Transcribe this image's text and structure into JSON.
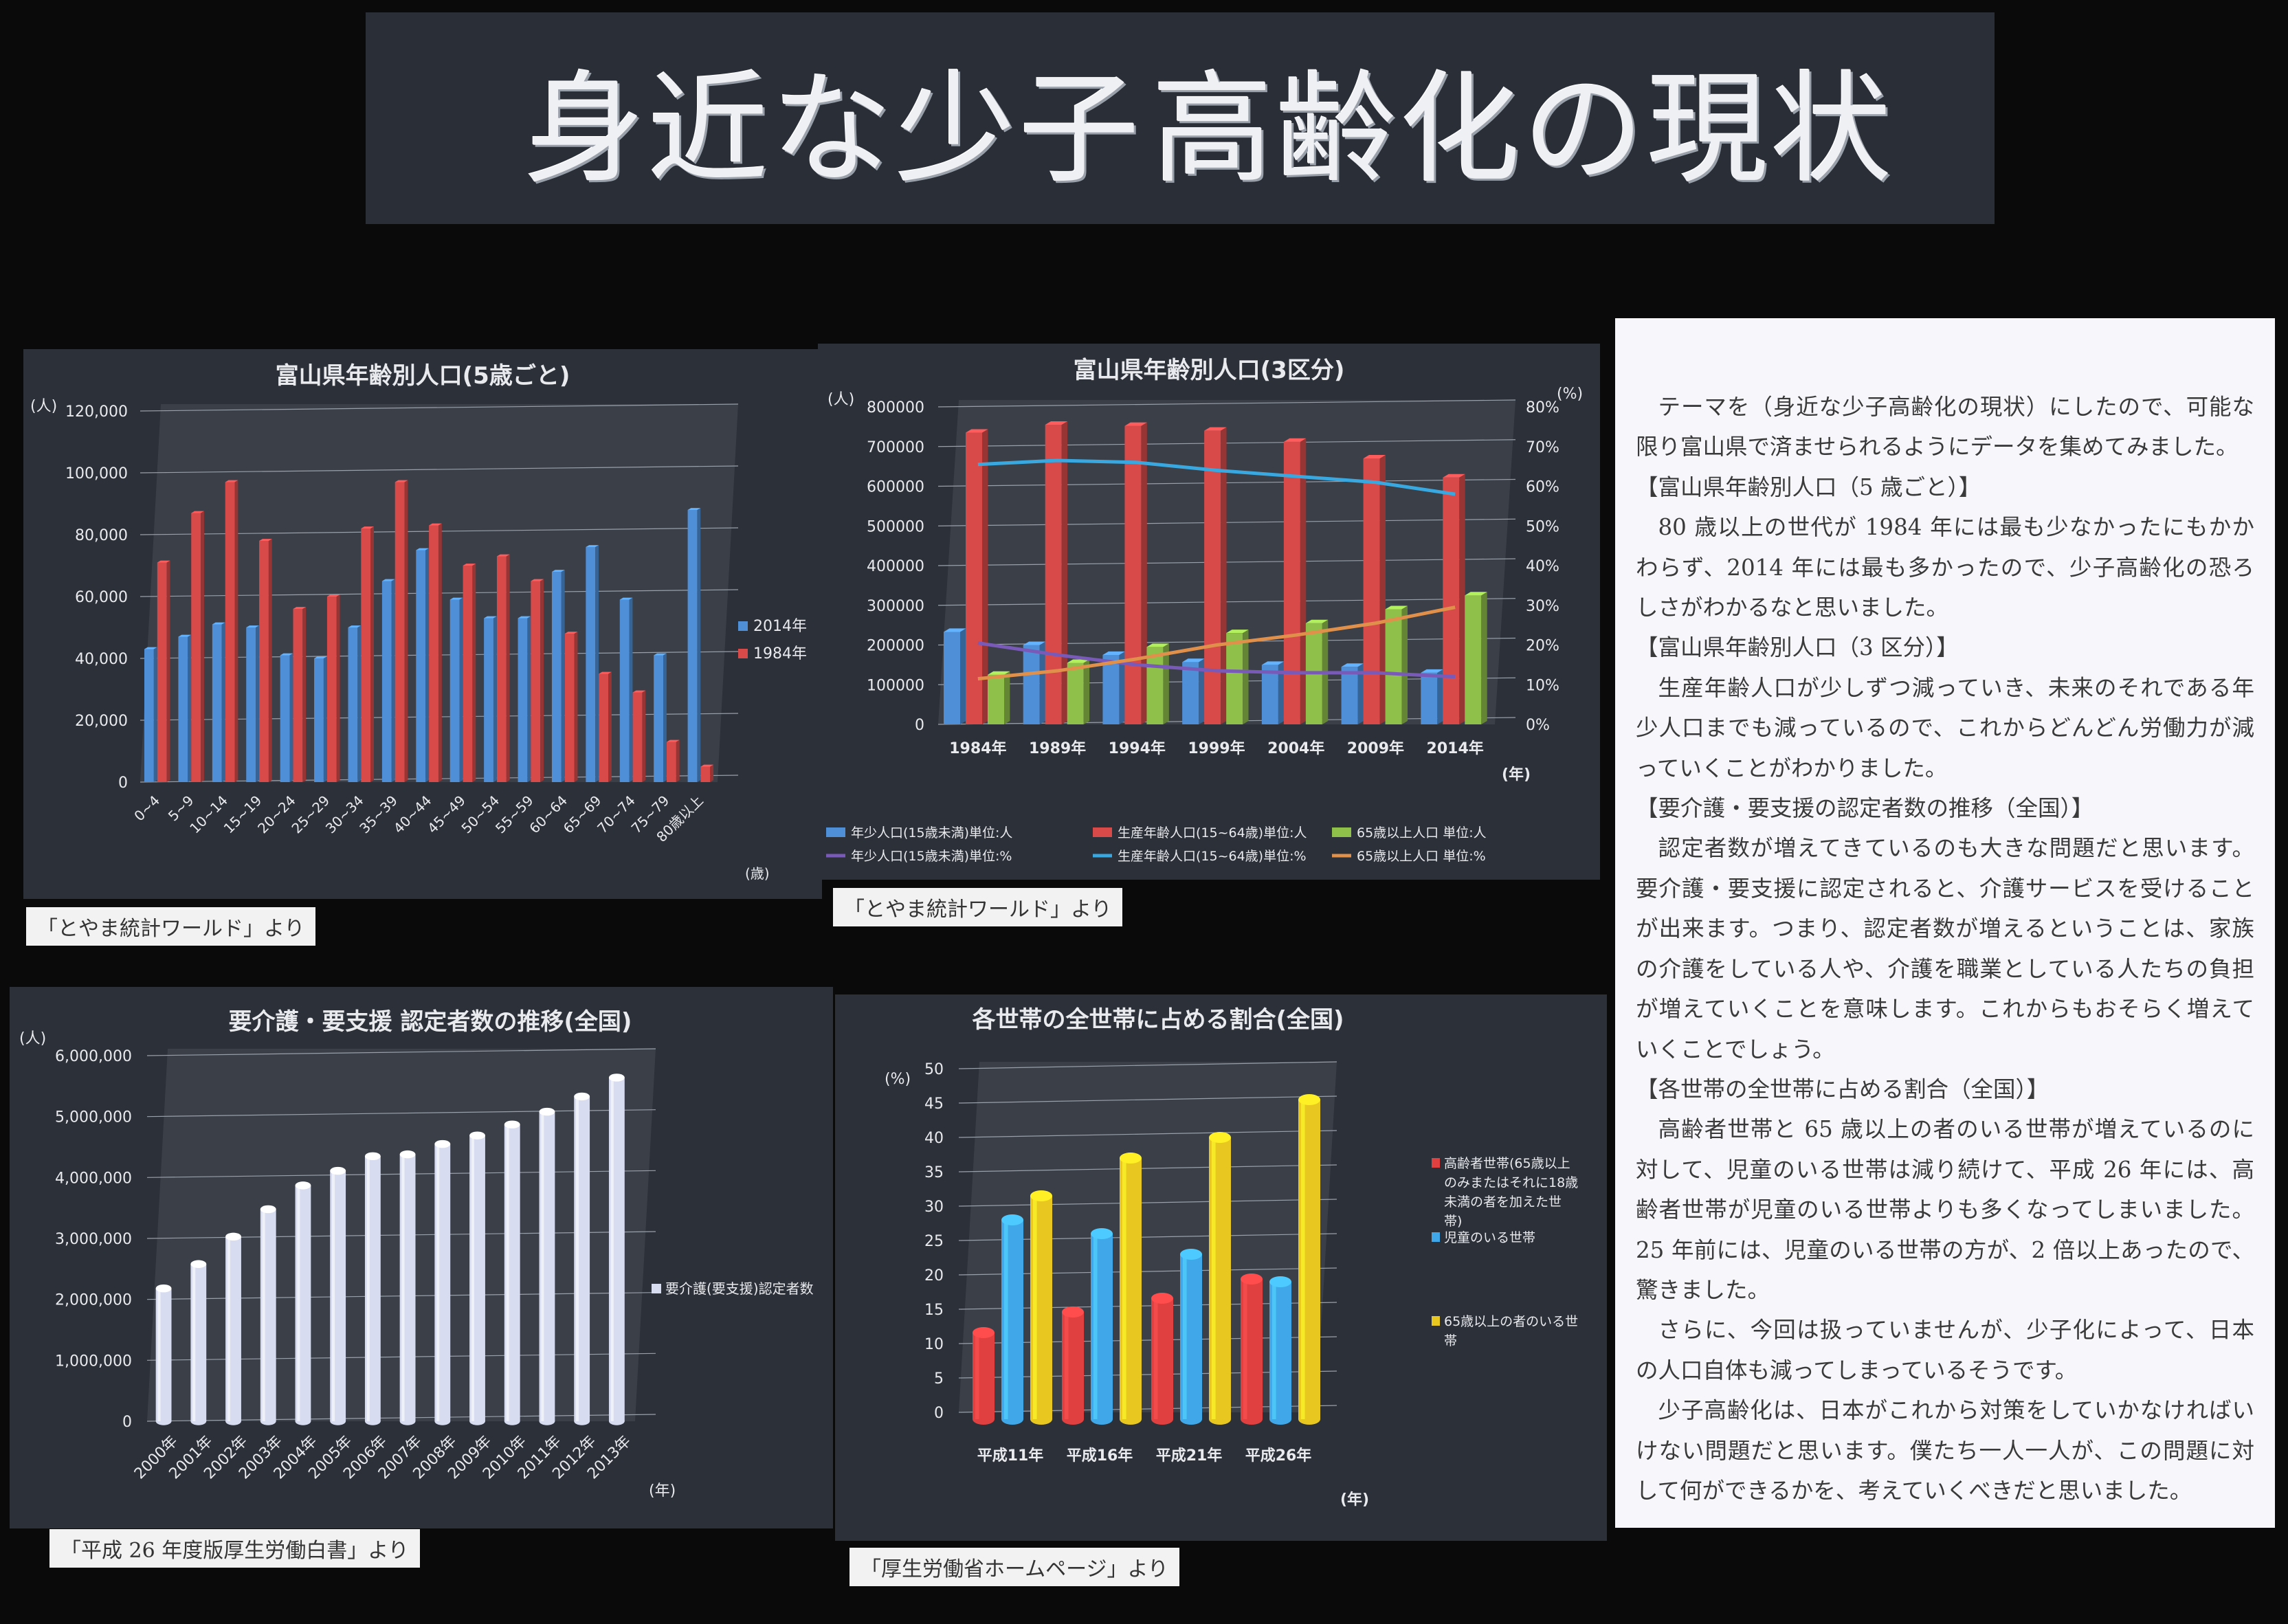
{
  "title": {
    "part1": "身近な少子",
    "part2": "高齢化の現状"
  },
  "chart_data": [
    {
      "id": "chart1",
      "type": "bar",
      "title": "富山県年齢別人口(5歳ごと)",
      "y_unit": "(人)",
      "x_unit": "(歳)",
      "ylim": [
        0,
        120000
      ],
      "yticks": [
        "0",
        "20,000",
        "40,000",
        "60,000",
        "80,000",
        "100,000",
        "120,000"
      ],
      "categories": [
        "0~4",
        "5~9",
        "10~14",
        "15~19",
        "20~24",
        "25~29",
        "30~34",
        "35~39",
        "40~44",
        "45~49",
        "50~54",
        "55~59",
        "60~64",
        "65~69",
        "70~74",
        "75~79",
        "80歳以上"
      ],
      "series": [
        {
          "name": "2014年",
          "color": "#4f8fd8",
          "values": [
            43000,
            47000,
            51000,
            50000,
            41000,
            40000,
            50000,
            65000,
            75000,
            59000,
            53000,
            53000,
            68000,
            76000,
            59000,
            41000,
            88000
          ]
        },
        {
          "name": "1984年",
          "color": "#d84a4a",
          "values": [
            71000,
            87000,
            97000,
            78000,
            56000,
            60000,
            82000,
            97000,
            83000,
            70000,
            73000,
            65000,
            48000,
            35000,
            29000,
            13000,
            5000
          ]
        }
      ]
    },
    {
      "id": "chart2",
      "type": "bar",
      "title": "富山県年齢別人口(3区分)",
      "y_unit": "(人)",
      "y2_unit": "(%)",
      "x_unit": "(年)",
      "ylim": [
        0,
        800000
      ],
      "y2lim": [
        0,
        80
      ],
      "yticks": [
        "0",
        "100000",
        "200000",
        "300000",
        "400000",
        "500000",
        "600000",
        "700000",
        "800000"
      ],
      "y2ticks": [
        "0%",
        "10%",
        "20%",
        "30%",
        "40%",
        "50%",
        "60%",
        "70%",
        "80%"
      ],
      "categories": [
        "1984年",
        "1989年",
        "1994年",
        "1999年",
        "2004年",
        "2009年",
        "2014年"
      ],
      "series": [
        {
          "name": "年少人口(15歳未満)単位:人",
          "color": "#4f8fd8",
          "values": [
            233000,
            200000,
            175000,
            157000,
            150000,
            145000,
            130000
          ]
        },
        {
          "name": "生産年齢人口(15~64歳)単位:人",
          "color": "#d84a4a",
          "values": [
            735000,
            755000,
            752000,
            740000,
            712000,
            670000,
            622000
          ]
        },
        {
          "name": "65歳以上人口 単位:人",
          "color": "#8fc04a",
          "values": [
            125000,
            155000,
            195000,
            230000,
            255000,
            290000,
            325000
          ]
        }
      ],
      "line_series": [
        {
          "name": "年少人口(15歳未満)単位:%",
          "color": "#7a5ab8",
          "values": [
            20.5,
            17.5,
            15.0,
            13.5,
            13.0,
            13.0,
            12.0
          ]
        },
        {
          "name": "生産年齢人口(15~64歳)単位:%",
          "color": "#3aa8e0",
          "values": [
            65.5,
            66.5,
            66.0,
            64.0,
            62.5,
            61.0,
            58.0
          ]
        },
        {
          "name": "65歳以上人口 単位:%",
          "color": "#e0904a",
          "values": [
            11.5,
            13.5,
            16.5,
            20.0,
            22.5,
            25.5,
            29.5
          ]
        }
      ]
    },
    {
      "id": "chart3",
      "type": "bar",
      "title": "要介護・要支援 認定者数の推移(全国)",
      "y_unit": "(人)",
      "x_unit": "(年)",
      "ylim": [
        0,
        6000000
      ],
      "yticks": [
        "0",
        "1,000,000",
        "2,000,000",
        "3,000,000",
        "4,000,000",
        "5,000,000",
        "6,000,000"
      ],
      "categories": [
        "2000年",
        "2001年",
        "2002年",
        "2003年",
        "2004年",
        "2005年",
        "2006年",
        "2007年",
        "2008年",
        "2009年",
        "2010年",
        "2011年",
        "2012年",
        "2013年"
      ],
      "series": [
        {
          "name": "要介護(要支援)認定者数",
          "color": "#d8dcf0",
          "values": [
            2180000,
            2580000,
            3030000,
            3480000,
            3870000,
            4110000,
            4350000,
            4380000,
            4550000,
            4690000,
            4870000,
            5080000,
            5330000,
            5640000
          ]
        }
      ]
    },
    {
      "id": "chart4",
      "type": "bar",
      "title": "各世帯の全世帯に占める割合(全国)",
      "y_unit": "(%)",
      "x_unit": "(年)",
      "ylim": [
        0,
        50
      ],
      "yticks": [
        "0",
        "5",
        "10",
        "15",
        "20",
        "25",
        "30",
        "35",
        "40",
        "45",
        "50"
      ],
      "categories": [
        "平成11年",
        "平成16年",
        "平成21年",
        "平成26年"
      ],
      "series": [
        {
          "name": "高齢者世帯(65歳以上のみまたはそれに18歳未満の者を加えた世帯)",
          "legend_lines": [
            "高齢者世帯(65歳以上",
            "のみまたはそれに18歳",
            "未満の者を加えた世",
            "帯)"
          ],
          "color": "#e04040",
          "values": [
            12.6,
            15.6,
            17.6,
            20.4
          ]
        },
        {
          "name": "児童のいる世帯",
          "legend_lines": [
            "児童のいる世帯"
          ],
          "color": "#40a8e8",
          "values": [
            29.0,
            27.0,
            24.0,
            20.0
          ]
        },
        {
          "name": "65歳以上の者のいる世帯",
          "legend_lines": [
            "65歳以上の者のいる世",
            "帯"
          ],
          "color": "#e8c820",
          "values": [
            32.5,
            38.0,
            41.0,
            46.5
          ]
        }
      ]
    }
  ],
  "captions": {
    "c1": "「とやま統計ワールド」より",
    "c2": "「とやま統計ワールド」より",
    "c3": "「平成 26 年度版厚生労働白書」より",
    "c4": "「厚生労働省ホームページ」より"
  },
  "essay": {
    "p1": "テーマを（身近な少子高齢化の現状）にしたので、可能な限り富山県で済ませられるようにデータを集めてみました。",
    "h1": "【富山県年齢別人口（5 歳ごと）】",
    "p2": "80 歳以上の世代が 1984 年には最も少なかったにもかかわらず、2014 年には最も多かったので、少子高齢化の恐ろしさがわかるなと思いました。",
    "h2": "【富山県年齢別人口（3 区分）】",
    "p3": "生産年齢人口が少しずつ減っていき、未来のそれである年少人口までも減っているので、これからどんどん労働力が減っていくことがわかりました。",
    "h3": "【要介護・要支援の認定者数の推移（全国）】",
    "p4": "認定者数が増えてきているのも大きな問題だと思います。要介護・要支援に認定されると、介護サービスを受けることが出来ます。つまり、認定者数が増えるということは、家族の介護をしている人や、介護を職業としている人たちの負担が増えていくことを意味します。これからもおそらく増えていくことでしょう。",
    "h4": "【各世帯の全世帯に占める割合（全国）】",
    "p5": "高齢者世帯と 65 歳以上の者のいる世帯が増えているのに対して、児童のいる世帯は減り続けて、平成 26 年には、高齢者世帯が児童のいる世帯よりも多くなってしまいました。25 年前には、児童のいる世帯の方が、2 倍以上あったので、驚きました。",
    "p6": "さらに、今回は扱っていませんが、少子化によって、日本の人口自体も減ってしまっているそうです。",
    "p7": "少子高齢化は、日本がこれから対策をしていかなければいけない問題だと思います。僕たち一人一人が、この問題に対して何ができるかを、考えていくべきだと思いました。"
  }
}
